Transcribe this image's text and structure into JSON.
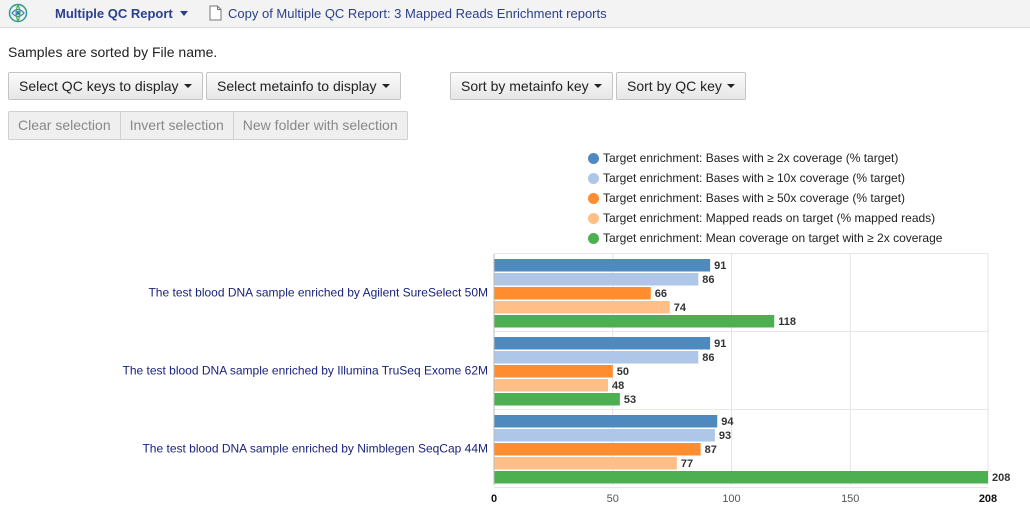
{
  "header": {
    "report_menu_label": "Multiple QC Report",
    "document_title": "Copy of Multiple QC Report: 3 Mapped Reads Enrichment reports"
  },
  "sort_info": "Samples are sorted by File name.",
  "toolbar": {
    "select_qc_keys": "Select QC keys to display",
    "select_metainfo": "Select metainfo to display",
    "sort_by_metainfo": "Sort by metainfo key",
    "sort_by_qc": "Sort by QC key"
  },
  "selection_bar": {
    "clear": "Clear selection",
    "invert": "Invert selection",
    "new_folder": "New folder with selection"
  },
  "colors": {
    "series": [
      "#4e8ac0",
      "#aec6e8",
      "#ff8c2e",
      "#ffbf86",
      "#4caf50"
    ],
    "sample_label": "#1a237e",
    "link": "#2b3f8c"
  },
  "chart_data": {
    "type": "bar",
    "orientation": "horizontal",
    "categories": [
      "The test blood DNA sample enriched by Agilent SureSelect 50M",
      "The test blood DNA sample enriched by Illumina TruSeq Exome 62M",
      "The test blood DNA sample enriched by Nimblegen SeqCap 44M"
    ],
    "series": [
      {
        "name": "Target enrichment: Bases with ≥ 2x coverage (% target)",
        "values": [
          91,
          91,
          94
        ]
      },
      {
        "name": "Target enrichment: Bases with ≥ 10x coverage (% target)",
        "values": [
          86,
          86,
          93
        ]
      },
      {
        "name": "Target enrichment: Bases with ≥ 50x coverage (% target)",
        "values": [
          66,
          50,
          87
        ]
      },
      {
        "name": "Target enrichment: Mapped reads on target (% mapped reads)",
        "values": [
          74,
          48,
          77
        ]
      },
      {
        "name": "Target enrichment: Mean coverage on target with ≥ 2x coverage",
        "values": [
          118,
          53,
          208
        ]
      }
    ],
    "xlim": [
      0,
      208
    ],
    "xticks": [
      "0",
      "50",
      "100",
      "150",
      "208"
    ],
    "tick_values": [
      0,
      50,
      100,
      150,
      208
    ],
    "legend_position": "top-right",
    "grid": true
  }
}
